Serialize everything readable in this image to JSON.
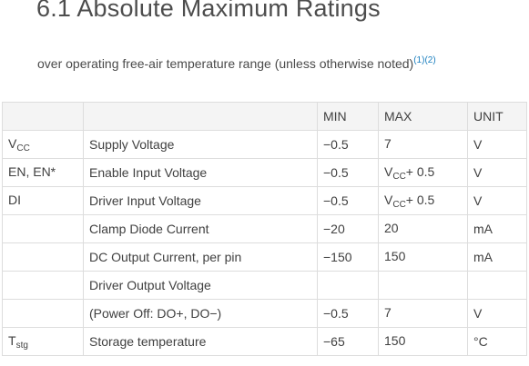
{
  "section": {
    "title": "6.1 Absolute Maximum Ratings",
    "subtitle": "over operating free-air temperature range (unless otherwise noted)",
    "footnotes": [
      "(1)",
      "(2)"
    ]
  },
  "table": {
    "headers": [
      "",
      "",
      "MIN",
      "MAX",
      "UNIT"
    ],
    "rows": [
      {
        "symbol": "V",
        "symbol_sub": "CC",
        "param": "Supply Voltage",
        "min": "−0.5",
        "max": "7",
        "max_sub": "",
        "max_suffix": "",
        "unit": "V"
      },
      {
        "symbol": "EN, EN*",
        "symbol_sub": "",
        "param": "Enable Input Voltage",
        "min": "−0.5",
        "max": "V",
        "max_sub": "CC",
        "max_suffix": "+ 0.5",
        "unit": "V"
      },
      {
        "symbol": "DI",
        "symbol_sub": "",
        "param": "Driver Input Voltage",
        "min": "−0.5",
        "max": "V",
        "max_sub": "CC",
        "max_suffix": "+ 0.5",
        "unit": "V"
      },
      {
        "symbol": "",
        "symbol_sub": "",
        "param": "Clamp Diode Current",
        "min": "−20",
        "max": "20",
        "max_sub": "",
        "max_suffix": "",
        "unit": "mA"
      },
      {
        "symbol": "",
        "symbol_sub": "",
        "param": "DC Output Current, per pin",
        "min": "−150",
        "max": "150",
        "max_sub": "",
        "max_suffix": "",
        "unit": "mA"
      },
      {
        "symbol": "",
        "symbol_sub": "",
        "param": "Driver Output Voltage",
        "min": "",
        "max": "",
        "max_sub": "",
        "max_suffix": "",
        "unit": ""
      },
      {
        "symbol": "",
        "symbol_sub": "",
        "param": "(Power Off: DO+, DO−)",
        "min": "−0.5",
        "max": "7",
        "max_sub": "",
        "max_suffix": "",
        "unit": "V"
      },
      {
        "symbol": "T",
        "symbol_sub": "stg",
        "param": "Storage temperature",
        "min": "−65",
        "max": "150",
        "max_sub": "",
        "max_suffix": "",
        "unit": "°C"
      }
    ]
  }
}
